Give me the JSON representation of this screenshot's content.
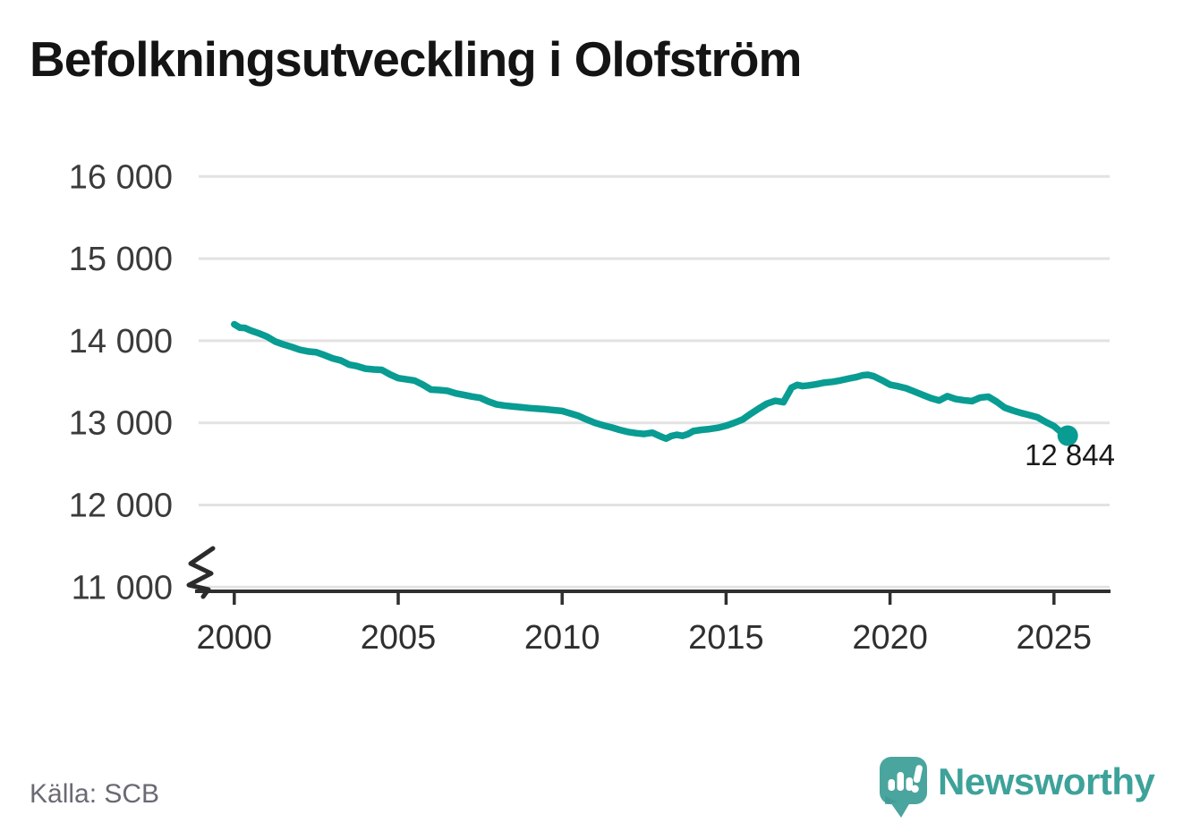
{
  "title": "Befolkningsutveckling i Olofström",
  "source": {
    "label": "Källa: SCB"
  },
  "branding": {
    "name": "Newsworthy",
    "logo_icon": "newsworthy-speech-bubble-chart-icon",
    "text_color": "#3da29a",
    "bubble_color": "#4aa59e"
  },
  "chart_data": {
    "type": "line",
    "title": "Befolkningsutveckling i Olofström",
    "xlabel": "",
    "ylabel": "",
    "xlim": [
      1999.8,
      2026.7
    ],
    "ylim": [
      11000,
      16000
    ],
    "axis_break_at_bottom": true,
    "grid": true,
    "grid_color": "#e2e2e2",
    "axis_color": "#2f2f2f",
    "line_color": "#089c93",
    "x_ticks": [
      2000,
      2005,
      2010,
      2015,
      2020,
      2025
    ],
    "x_tick_labels": [
      "2000",
      "2005",
      "2010",
      "2015",
      "2020",
      "2025"
    ],
    "y_ticks": [
      16000,
      15000,
      14000,
      13000,
      12000,
      11000
    ],
    "y_tick_labels": [
      "16 000",
      "15 000",
      "14 000",
      "13 000",
      "12 000",
      "11 000"
    ],
    "end_point": {
      "x": 2025.42,
      "y": 12844,
      "label": "12 844"
    },
    "series": [
      {
        "name": "Befolkning i Olofström",
        "points": [
          [
            2000.0,
            14200
          ],
          [
            2000.17,
            14160
          ],
          [
            2000.33,
            14155
          ],
          [
            2000.5,
            14125
          ],
          [
            2000.75,
            14090
          ],
          [
            2001.0,
            14050
          ],
          [
            2001.25,
            13990
          ],
          [
            2001.5,
            13955
          ],
          [
            2001.75,
            13925
          ],
          [
            2002.0,
            13890
          ],
          [
            2002.25,
            13870
          ],
          [
            2002.5,
            13860
          ],
          [
            2002.75,
            13825
          ],
          [
            2003.0,
            13785
          ],
          [
            2003.25,
            13760
          ],
          [
            2003.5,
            13710
          ],
          [
            2003.75,
            13690
          ],
          [
            2004.0,
            13660
          ],
          [
            2004.25,
            13650
          ],
          [
            2004.5,
            13645
          ],
          [
            2004.75,
            13590
          ],
          [
            2005.0,
            13545
          ],
          [
            2005.25,
            13530
          ],
          [
            2005.5,
            13515
          ],
          [
            2005.75,
            13465
          ],
          [
            2006.0,
            13405
          ],
          [
            2006.25,
            13400
          ],
          [
            2006.5,
            13390
          ],
          [
            2006.75,
            13360
          ],
          [
            2007.0,
            13340
          ],
          [
            2007.25,
            13320
          ],
          [
            2007.5,
            13305
          ],
          [
            2007.75,
            13260
          ],
          [
            2008.0,
            13225
          ],
          [
            2008.25,
            13210
          ],
          [
            2008.5,
            13200
          ],
          [
            2008.75,
            13190
          ],
          [
            2009.0,
            13180
          ],
          [
            2009.25,
            13172
          ],
          [
            2009.5,
            13165
          ],
          [
            2009.75,
            13155
          ],
          [
            2010.0,
            13145
          ],
          [
            2010.25,
            13115
          ],
          [
            2010.5,
            13085
          ],
          [
            2010.75,
            13040
          ],
          [
            2011.0,
            13000
          ],
          [
            2011.25,
            12970
          ],
          [
            2011.5,
            12945
          ],
          [
            2011.75,
            12915
          ],
          [
            2012.0,
            12890
          ],
          [
            2012.25,
            12875
          ],
          [
            2012.5,
            12865
          ],
          [
            2012.75,
            12880
          ],
          [
            2013.0,
            12835
          ],
          [
            2013.17,
            12808
          ],
          [
            2013.33,
            12840
          ],
          [
            2013.5,
            12855
          ],
          [
            2013.67,
            12842
          ],
          [
            2013.83,
            12862
          ],
          [
            2014.0,
            12900
          ],
          [
            2014.25,
            12915
          ],
          [
            2014.5,
            12925
          ],
          [
            2014.75,
            12940
          ],
          [
            2015.0,
            12965
          ],
          [
            2015.25,
            13000
          ],
          [
            2015.5,
            13040
          ],
          [
            2015.75,
            13110
          ],
          [
            2016.0,
            13175
          ],
          [
            2016.25,
            13235
          ],
          [
            2016.5,
            13268
          ],
          [
            2016.75,
            13252
          ],
          [
            2017.0,
            13430
          ],
          [
            2017.17,
            13462
          ],
          [
            2017.33,
            13448
          ],
          [
            2017.5,
            13455
          ],
          [
            2017.75,
            13470
          ],
          [
            2018.0,
            13490
          ],
          [
            2018.25,
            13500
          ],
          [
            2018.5,
            13518
          ],
          [
            2018.75,
            13540
          ],
          [
            2019.0,
            13560
          ],
          [
            2019.17,
            13580
          ],
          [
            2019.33,
            13585
          ],
          [
            2019.5,
            13568
          ],
          [
            2019.75,
            13520
          ],
          [
            2020.0,
            13465
          ],
          [
            2020.25,
            13445
          ],
          [
            2020.5,
            13420
          ],
          [
            2020.75,
            13380
          ],
          [
            2021.0,
            13340
          ],
          [
            2021.25,
            13300
          ],
          [
            2021.5,
            13272
          ],
          [
            2021.75,
            13325
          ],
          [
            2022.0,
            13290
          ],
          [
            2022.25,
            13275
          ],
          [
            2022.5,
            13265
          ],
          [
            2022.75,
            13308
          ],
          [
            2023.0,
            13318
          ],
          [
            2023.25,
            13258
          ],
          [
            2023.5,
            13185
          ],
          [
            2023.75,
            13150
          ],
          [
            2024.0,
            13120
          ],
          [
            2024.25,
            13095
          ],
          [
            2024.5,
            13068
          ],
          [
            2024.75,
            13010
          ],
          [
            2025.0,
            12960
          ],
          [
            2025.17,
            12902
          ],
          [
            2025.33,
            12862
          ],
          [
            2025.42,
            12844
          ]
        ]
      }
    ]
  }
}
